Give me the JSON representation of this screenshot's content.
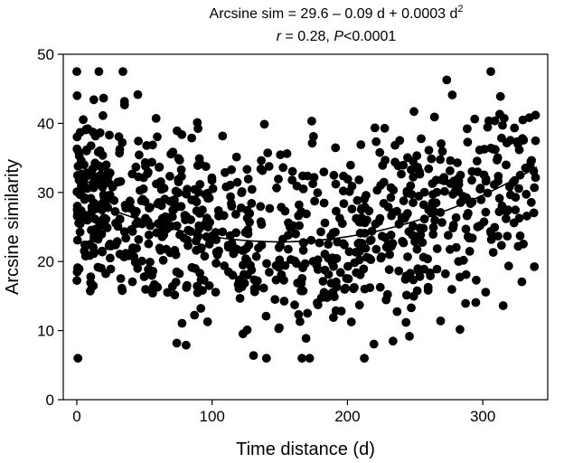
{
  "chart_data": {
    "type": "scatter",
    "title": "Arcsine sim = 29.6 – 0.09 d + 0.0003 d",
    "title_superscript": "2",
    "subtitle_parts": [
      "r",
      " = 0.28, ",
      "P",
      "<0.0001"
    ],
    "xlabel": "Time distance (d)",
    "ylabel": "Arcsine similarity",
    "xlim": [
      -10,
      348
    ],
    "ylim": [
      0,
      50
    ],
    "xticks": [
      0,
      100,
      200,
      300
    ],
    "yticks": [
      0,
      10,
      20,
      30,
      40,
      50
    ],
    "grid": false,
    "fit": {
      "intercept": 29.6,
      "linear": -0.09,
      "quadratic": 0.0003,
      "x_range": [
        0,
        340
      ]
    },
    "n_points": 900,
    "points_description_only_for_script": false,
    "x": [],
    "y": []
  }
}
